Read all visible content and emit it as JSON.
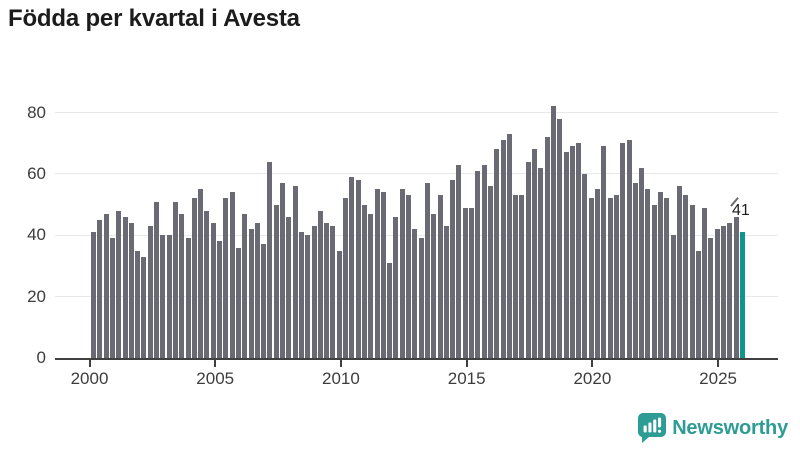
{
  "title": "Födda per kvartal i Avesta",
  "colors": {
    "bar": "#6a6a75",
    "highlight": "#0f968c",
    "grid": "#e8e8e8",
    "axis": "#404040",
    "axis_text": "#3d3d3d",
    "title_text": "#1c1c1c",
    "logo_teal": "#2d9c95"
  },
  "annotation": {
    "label": "41"
  },
  "logo": {
    "text": "Newsworthy",
    "icon": "newsworthy-speech-bubble-bar-chart-icon"
  },
  "chart_data": {
    "type": "bar",
    "title": "Födda per kvartal i Avesta",
    "frequency": "quarterly",
    "start": "2000-Q1",
    "end": "2025-Q4",
    "x_tick_labels": [
      "2000",
      "2005",
      "2010",
      "2015",
      "2020",
      "2025"
    ],
    "y_ticks": [
      0,
      20,
      40,
      60,
      80
    ],
    "ylim": [
      0,
      87
    ],
    "grid": "horizontal",
    "legend": "none",
    "values": [
      41,
      45,
      47,
      39,
      48,
      46,
      44,
      35,
      33,
      43,
      51,
      40,
      40,
      51,
      47,
      39,
      52,
      55,
      48,
      44,
      38,
      52,
      54,
      36,
      47,
      42,
      44,
      37,
      64,
      50,
      57,
      46,
      56,
      41,
      40,
      43,
      48,
      44,
      43,
      35,
      52,
      59,
      58,
      50,
      47,
      55,
      54,
      31,
      46,
      55,
      53,
      42,
      39,
      57,
      47,
      53,
      43,
      58,
      63,
      49,
      49,
      61,
      63,
      56,
      68,
      71,
      73,
      53,
      53,
      64,
      68,
      62,
      72,
      82,
      78,
      67,
      69,
      70,
      60,
      52,
      55,
      69,
      52,
      53,
      70,
      71,
      57,
      62,
      55,
      50,
      54,
      52,
      40,
      56,
      53,
      50,
      35,
      49,
      39,
      42,
      43,
      44,
      46,
      41
    ],
    "highlight": {
      "index": 103,
      "category": "2025-Q4",
      "value": 41,
      "label": "41",
      "color": "#0f968c"
    }
  }
}
